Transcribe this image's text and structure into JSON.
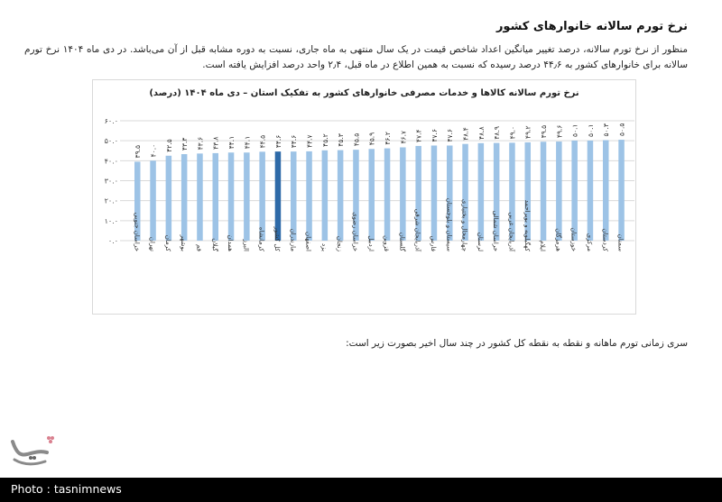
{
  "article": {
    "heading": "نرخ تورم سالانه خانوارهای کشور",
    "paragraph": "منظور از نرخ تورم سالانه، درصد تغییر میانگین اعداد شاخص قیمت در یک سال منتهی به ماه جاری، نسبت به دوره مشابه قبل از آن می‌باشد. در دی ماه ۱۴۰۴ نرخ تورم سالانه برای خانوارهای کشور به ۴۴٫۶ درصد رسیده که نسبت به همین اطلاع در ماه قبل، ۲٫۴ واحد درصد افزایش یافته است.",
    "after_chart": "سری زمانی تورم ماهانه و نقطه به نقطه کل کشور در چند سال اخیر بصورت زیر است:"
  },
  "footer": {
    "credit": "Photo : tasnimnews"
  },
  "colors": {
    "bar": "#9dc3e6",
    "highlight_bar": "#2e6aa8",
    "grid": "#d9d9d9",
    "frame": "#d9d9d9"
  },
  "chart_data": {
    "type": "bar",
    "title": "نرخ تورم سالانه کالاها و خدمات مصرفی خانوارهای کشور به تفکیک استان – دی ماه ۱۴۰۴ (درصد)",
    "xlabel": "",
    "ylabel": "",
    "ylim": [
      0,
      60
    ],
    "yticks": [
      0,
      10,
      20,
      30,
      40,
      50,
      60
    ],
    "ytick_labels": [
      "۰.۰",
      "۱۰.۰",
      "۲۰.۰",
      "۳۰.۰",
      "۴۰.۰",
      "۵۰.۰",
      "۶۰.۰"
    ],
    "grid": true,
    "legend": null,
    "highlight_category": "کل کشور",
    "categories": [
      "خراسان جنوبی",
      "تهران",
      "کرمان",
      "بوشهر",
      "قم",
      "گیلان",
      "همدان",
      "البرز",
      "کرمانشاه",
      "کل کشور",
      "مازندران",
      "اصفهان",
      "یزد",
      "زنجان",
      "خراسان رضوی",
      "اردبیل",
      "قزوین",
      "گلستان",
      "آذربایجان شرقی",
      "فارس",
      "سیستان و بلوچستان",
      "چهارمحال و بختیاری",
      "لرستان",
      "خراسان شمالی",
      "آذربایجان غربی",
      "کهگیلویه و بویراحمد",
      "ایلام",
      "هرمزگان",
      "خوزستان",
      "مرکزی",
      "کردستان",
      "سمنان"
    ],
    "values": [
      39.5,
      40.0,
      42.5,
      43.3,
      43.6,
      43.8,
      44.1,
      44.1,
      44.5,
      44.6,
      44.6,
      44.7,
      45.2,
      45.3,
      45.5,
      45.9,
      46.2,
      46.7,
      47.4,
      47.6,
      47.6,
      48.4,
      48.8,
      48.9,
      49.0,
      49.2,
      49.5,
      49.6,
      50.1,
      50.1,
      50.3,
      50.5
    ],
    "value_labels": [
      "۳۹.۵",
      "۴۰.۰",
      "۴۲.۵",
      "۴۳.۳",
      "۴۳.۶",
      "۴۳.۸",
      "۴۴.۱",
      "۴۴.۱",
      "۴۴.۵",
      "۴۴.۶",
      "۴۴.۶",
      "۴۴.۷",
      "۴۵.۲",
      "۴۵.۳",
      "۴۵.۵",
      "۴۵.۹",
      "۴۶.۲",
      "۴۶.۷",
      "۴۷.۴",
      "۴۷.۶",
      "۴۷.۶",
      "۴۸.۴",
      "۴۸.۸",
      "۴۸.۹",
      "۴۹.۰",
      "۴۹.۲",
      "۴۹.۵",
      "۴۹.۶",
      "۵۰.۱",
      "۵۰.۱",
      "۵۰.۳",
      "۵۰.۵"
    ]
  }
}
